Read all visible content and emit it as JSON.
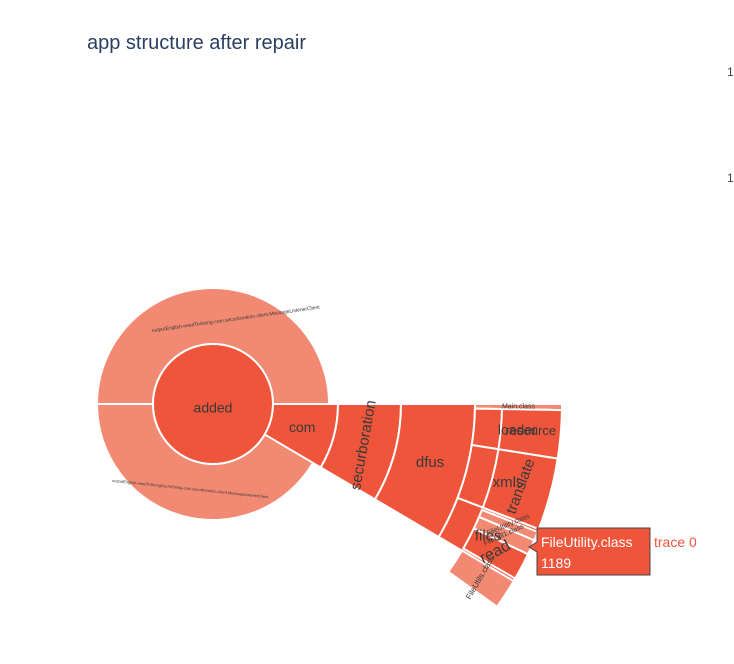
{
  "chart_data": {
    "type": "sunburst",
    "title": "app structure after repair",
    "colors": {
      "base": "#ef553b",
      "light": "#f28a73",
      "stroke": "#ffffff",
      "title": "#2a3f5f"
    },
    "stray_ticks": [
      "1",
      "1"
    ],
    "hover": {
      "label": "FileUtility.class",
      "value": "1189",
      "trace": "trace 0"
    },
    "nodes": [
      {
        "id": "added",
        "parent": "",
        "label": "added",
        "shade": "base"
      },
      {
        "id": "outer_a",
        "parent": "added",
        "label": "outputEnglish-needToString-com.securboration.client.MessageListenerClient",
        "shade": "light"
      },
      {
        "id": "outer_b",
        "parent": "added",
        "label": "outputEnglish-needToStringSecToString-com.securboration.client.MessageListenerClient",
        "shade": "light"
      },
      {
        "id": "com",
        "parent": "",
        "label": "com",
        "shade": "base"
      },
      {
        "id": "securboration",
        "parent": "com",
        "label": "securboration",
        "shade": "base"
      },
      {
        "id": "dfus",
        "parent": "securboration",
        "label": "dfus",
        "shade": "base"
      },
      {
        "id": "main_class",
        "parent": "dfus",
        "label": "Main.class",
        "shade": "light"
      },
      {
        "id": "loader",
        "parent": "dfus",
        "label": "loader",
        "shade": "base"
      },
      {
        "id": "resource",
        "parent": "loader",
        "label": "resource",
        "shade": "base"
      },
      {
        "id": "xmls",
        "parent": "dfus",
        "label": "xmls",
        "shade": "base"
      },
      {
        "id": "translate",
        "parent": "xmls",
        "label": "translate",
        "shade": "base"
      },
      {
        "id": "files",
        "parent": "dfus",
        "label": "files",
        "shade": "base"
      },
      {
        "id": "fileutility",
        "parent": "files",
        "label": "FileUtility.class",
        "shade": "light"
      },
      {
        "id": "fileutil1",
        "parent": "files",
        "label": "FileUtil1.class",
        "shade": "light"
      },
      {
        "id": "read",
        "parent": "files",
        "label": "read",
        "shade": "base"
      },
      {
        "id": "fileutils",
        "parent": "files",
        "label": "FileUtils.class",
        "shade": "light"
      }
    ]
  }
}
